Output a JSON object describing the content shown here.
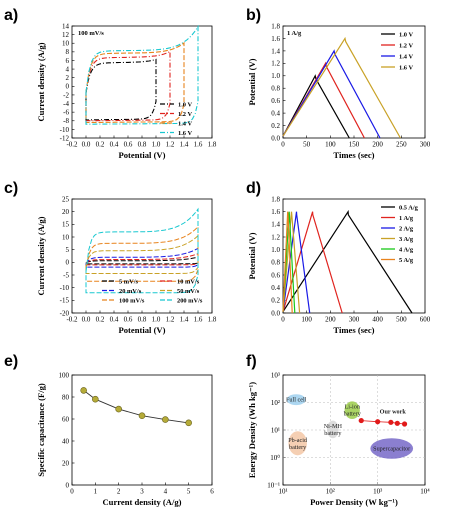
{
  "chart_data": [
    {
      "panel": "a)",
      "type": "line",
      "annotation": "100 mV/s",
      "xlabel": "Potential (V)",
      "ylabel": "Current density (A/g)",
      "xlim": [
        -0.2,
        1.8
      ],
      "ylim": [
        -12,
        14
      ],
      "xticks": [
        "-0.2",
        "0.0",
        "0.2",
        "0.4",
        "0.6",
        "0.8",
        "1.0",
        "1.2",
        "1.4",
        "1.6",
        "1.8"
      ],
      "yticks": [
        "-12",
        "-10",
        "-8",
        "-6",
        "-4",
        "-2",
        "0",
        "2",
        "4",
        "6",
        "8",
        "10",
        "12",
        "14"
      ],
      "series": [
        {
          "name": "1.0 V",
          "color": "#000000",
          "dash": "5 2 1 2",
          "vmax": 1.0,
          "lower": -7.6,
          "upper": 5.4,
          "start_up": -1.5,
          "start_low": -7.4,
          "up_end": 6.0,
          "low_end": -3.5
        },
        {
          "name": "1.2 V",
          "color": "#e0241f",
          "dash": "5 2 1 2",
          "vmax": 1.2,
          "lower": -7.8,
          "upper": 6.6,
          "start_up": -1.4,
          "start_low": -7.6,
          "up_end": 7.8,
          "low_end": -4.0
        },
        {
          "name": "1.4 V",
          "color": "#e8841e",
          "dash": "5 2",
          "vmax": 1.4,
          "lower": -8.2,
          "upper": 7.6,
          "start_up": -1.4,
          "start_low": -8.0,
          "up_end": 9.8,
          "low_end": -4.2
        },
        {
          "name": "1.6 V",
          "color": "#18c8d0",
          "dash": "5 2 1 2",
          "vmax": 1.6,
          "lower": -8.6,
          "upper": 8.2,
          "start_up": -1.3,
          "start_low": -8.5,
          "up_end": 13.6,
          "low_end": -3.6
        }
      ]
    },
    {
      "panel": "b)",
      "type": "line",
      "annotation": "1 A/g",
      "xlabel": "Times (sec)",
      "ylabel": "Potential (V)",
      "xlim": [
        0,
        300
      ],
      "ylim": [
        0,
        1.8
      ],
      "xticks": [
        "0",
        "50",
        "100",
        "150",
        "200",
        "250",
        "300"
      ],
      "yticks": [
        "0.0",
        "0.2",
        "0.4",
        "0.6",
        "0.8",
        "1.0",
        "1.2",
        "1.4",
        "1.6",
        "1.8"
      ],
      "series": [
        {
          "name": "1.0 V",
          "color": "#000000",
          "vmax": 1.0,
          "t_peak": 68,
          "t_end": 140
        },
        {
          "name": "1.2 V",
          "color": "#e0241f",
          "vmax": 1.2,
          "t_peak": 90,
          "t_end": 172
        },
        {
          "name": "1.4 V",
          "color": "#1a1ae6",
          "vmax": 1.4,
          "t_peak": 108,
          "t_end": 205
        },
        {
          "name": "1.6 V",
          "color": "#c9a227",
          "vmax": 1.6,
          "t_peak": 131,
          "t_end": 248
        }
      ]
    },
    {
      "panel": "c)",
      "type": "line",
      "xlabel": "Potential (V)",
      "ylabel": "Current density (A/g)",
      "xlim": [
        -0.2,
        1.8
      ],
      "ylim": [
        -20,
        25
      ],
      "xticks": [
        "-0.2",
        "0.0",
        "0.2",
        "0.4",
        "0.6",
        "0.8",
        "1.0",
        "1.2",
        "1.4",
        "1.6",
        "1.8"
      ],
      "yticks": [
        "-20",
        "-15",
        "-10",
        "-5",
        "0",
        "5",
        "10",
        "15",
        "20",
        "25"
      ],
      "series": [
        {
          "name": "5 mV/s",
          "color": "#000000",
          "dash": "5 2",
          "upper": 0.6,
          "lower": -0.6,
          "up_end": 2.0,
          "low_end": -0.3
        },
        {
          "name": "10 mV/s",
          "color": "#e0241f",
          "dash": "5 2",
          "upper": 1.1,
          "lower": -1.0,
          "up_end": 3.4,
          "low_end": -0.5
        },
        {
          "name": "20 mV/s",
          "color": "#1a1ae6",
          "dash": "5 2",
          "upper": 2.0,
          "lower": -1.9,
          "up_end": 5.5,
          "low_end": -1.0
        },
        {
          "name": "50 mV/s",
          "color": "#c9a227",
          "dash": "5 2",
          "upper": 4.6,
          "lower": -4.4,
          "up_end": 10.5,
          "low_end": -2.0
        },
        {
          "name": "100 mV/s",
          "color": "#e8841e",
          "dash": "5 2",
          "upper": 7.5,
          "lower": -7.5,
          "up_end": 14.0,
          "low_end": -3.0
        },
        {
          "name": "200 mV/s",
          "color": "#18c8d0",
          "dash": "5 2",
          "upper": 12.0,
          "lower": -12.0,
          "up_end": 21.0,
          "low_end": -5.0
        }
      ]
    },
    {
      "panel": "d)",
      "type": "line",
      "xlabel": "Times (sec)",
      "ylabel": "Potential (V)",
      "xlim": [
        0,
        600
      ],
      "ylim": [
        0,
        1.8
      ],
      "xticks": [
        "0",
        "100",
        "200",
        "300",
        "400",
        "500",
        "600"
      ],
      "yticks": [
        "0.0",
        "0.2",
        "0.4",
        "0.6",
        "0.8",
        "1.0",
        "1.2",
        "1.4",
        "1.6",
        "1.8"
      ],
      "series": [
        {
          "name": "0.5 A/g",
          "color": "#000000",
          "t_peak": 275,
          "t_end": 545
        },
        {
          "name": "1 A/g",
          "color": "#e0241f",
          "t_peak": 125,
          "t_end": 250
        },
        {
          "name": "2 A/g",
          "color": "#1a1ae6",
          "t_peak": 57,
          "t_end": 113
        },
        {
          "name": "3 A/g",
          "color": "#c9a227",
          "t_peak": 36,
          "t_end": 70
        },
        {
          "name": "4 A/g",
          "color": "#18c818",
          "t_peak": 26,
          "t_end": 50
        },
        {
          "name": "5 A/g",
          "color": "#e8841e",
          "t_peak": 20,
          "t_end": 39
        }
      ]
    },
    {
      "panel": "e)",
      "type": "line",
      "xlabel": "Current density (A/g)",
      "ylabel": "Specific capacitance (F/g)",
      "xlim": [
        0,
        6
      ],
      "ylim": [
        0,
        100
      ],
      "xticks": [
        "0",
        "1",
        "2",
        "3",
        "4",
        "5",
        "6"
      ],
      "yticks": [
        "0",
        "20",
        "40",
        "60",
        "80",
        "100"
      ],
      "marker_color": "#b5ab38",
      "x": [
        0.5,
        1,
        2,
        3,
        4,
        5
      ],
      "y": [
        86,
        78,
        69,
        63,
        59.5,
        56.5
      ]
    },
    {
      "panel": "f)",
      "type": "scatter",
      "scale": "log",
      "xlabel": "Power Density (W kg⁻¹)",
      "ylabel": "Energy Density (Wh kg⁻¹)",
      "xlim": [
        10,
        10000
      ],
      "ylim": [
        0.1,
        1000
      ],
      "xticks": [
        "10¹",
        "10²",
        "10³",
        "10⁴"
      ],
      "yticks": [
        "10⁻¹",
        "10⁰",
        "10¹",
        "10²",
        "10³"
      ],
      "regions": [
        {
          "name": "Full cell",
          "color": "#9fd0ee",
          "x": [
            12,
            30
          ],
          "y": [
            80,
            200
          ]
        },
        {
          "name": "Li-ion battery",
          "color": "#9ccc4a",
          "x": [
            200,
            420
          ],
          "y": [
            25,
            110
          ]
        },
        {
          "name": "Ni-MH battery",
          "color": "#d6d6d6",
          "x": [
            85,
            150
          ],
          "y": [
            5,
            22
          ]
        },
        {
          "name": "Pb-acid battery",
          "color": "#f3c7a6",
          "x": [
            13,
            32
          ],
          "y": [
            1.2,
            9
          ]
        },
        {
          "name": "Supercapacitor",
          "color": "#7769c8",
          "x": [
            700,
            5600
          ],
          "y": [
            0.9,
            5
          ]
        }
      ],
      "highlight": {
        "name": "Our work",
        "color": "#e11a1a",
        "x": [
          450,
          1000,
          1900,
          2600,
          3700
        ],
        "y": [
          22,
          20,
          19,
          17.5,
          16.5
        ]
      }
    }
  ]
}
